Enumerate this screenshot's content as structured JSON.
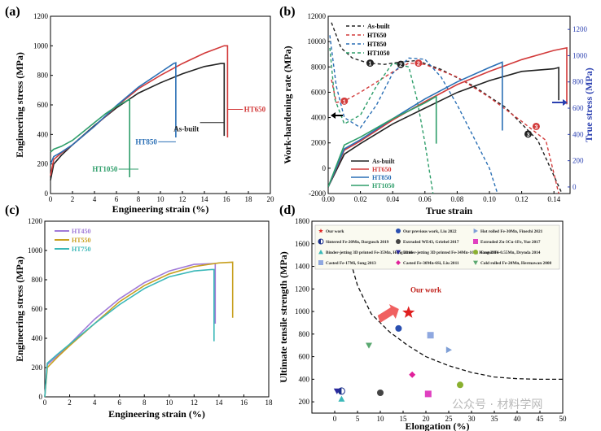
{
  "watermark": "公众号 · 材料学网",
  "chart_data": [
    {
      "panel": "(a)",
      "type": "line",
      "xlabel": "Engineering strain (%)",
      "ylabel": "Engineering stress (MPa)",
      "xlim": [
        0,
        20
      ],
      "ylim": [
        0,
        1200
      ],
      "xticks": [
        0,
        2,
        4,
        6,
        8,
        10,
        12,
        14,
        16,
        18,
        20
      ],
      "yticks": [
        0,
        200,
        400,
        600,
        800,
        1000,
        1200
      ],
      "series": [
        {
          "name": "As-built",
          "color": "#222222",
          "x": [
            0,
            0.3,
            1,
            2,
            4,
            6,
            8,
            10,
            12,
            14,
            15.5,
            15.8,
            15.8
          ],
          "y": [
            90,
            200,
            260,
            330,
            460,
            580,
            680,
            750,
            810,
            860,
            880,
            880,
            390
          ]
        },
        {
          "name": "HT650",
          "color": "#d23a3a",
          "x": [
            0,
            0.3,
            1,
            2,
            4,
            6,
            8,
            10,
            12,
            14,
            15.8,
            16.1,
            16.1
          ],
          "y": [
            120,
            230,
            275,
            330,
            455,
            590,
            710,
            800,
            880,
            950,
            1000,
            1000,
            380
          ]
        },
        {
          "name": "HT850",
          "color": "#2a6fb5",
          "x": [
            0,
            0.3,
            1,
            2,
            4,
            6,
            8,
            10,
            11.2,
            11.4,
            11.4
          ],
          "y": [
            200,
            250,
            280,
            330,
            455,
            595,
            720,
            820,
            880,
            885,
            380
          ]
        },
        {
          "name": "HT1050",
          "color": "#2e9e6a",
          "x": [
            0,
            0.3,
            1,
            2,
            3,
            4,
            5,
            6,
            7,
            7.2,
            7.2
          ],
          "y": [
            280,
            300,
            320,
            360,
            420,
            480,
            540,
            590,
            630,
            635,
            110
          ]
        }
      ],
      "annotations": [
        "As-built",
        "HT650",
        "HT850",
        "HT1050"
      ]
    },
    {
      "panel": "(b)",
      "type": "line",
      "xlabel": "True strain",
      "ylabel": "Work-hardening rate (MPa)",
      "y2label": "True stress (MPa)",
      "xlim": [
        0,
        0.15
      ],
      "ylim": [
        -2000,
        12000
      ],
      "y2lim": [
        -50,
        1300
      ],
      "xticks": [
        0.0,
        0.02,
        0.04,
        0.06,
        0.08,
        0.1,
        0.12,
        0.14
      ],
      "yticks": [
        -2000,
        0,
        2000,
        4000,
        6000,
        8000,
        10000,
        12000
      ],
      "y2ticks": [
        0,
        200,
        400,
        600,
        800,
        1000,
        1200
      ],
      "dashed_legend": [
        "As-built",
        "HT650",
        "HT850",
        "HT1050"
      ],
      "solid_legend": [
        "As-built",
        "HT650",
        "HT850",
        "HT1050"
      ],
      "markers": [
        "1",
        "2",
        "3"
      ],
      "whr_series": [
        {
          "name": "As-built",
          "color": "#222222",
          "x": [
            0.002,
            0.008,
            0.015,
            0.025,
            0.035,
            0.045,
            0.055,
            0.07,
            0.09,
            0.11,
            0.13,
            0.145
          ],
          "y": [
            11500,
            9500,
            8700,
            8300,
            8200,
            8400,
            8500,
            7800,
            6500,
            4800,
            2200,
            -2000
          ]
        },
        {
          "name": "HT650",
          "color": "#d23a3a",
          "x": [
            0.002,
            0.005,
            0.01,
            0.02,
            0.03,
            0.04,
            0.05,
            0.06,
            0.08,
            0.1,
            0.12,
            0.135,
            0.143
          ],
          "y": [
            7000,
            5200,
            5300,
            6000,
            6800,
            7600,
            8300,
            8200,
            7200,
            5600,
            3700,
            2200,
            -2000
          ]
        },
        {
          "name": "HT850",
          "color": "#2a6fb5",
          "x": [
            0.001,
            0.005,
            0.01,
            0.02,
            0.03,
            0.04,
            0.05,
            0.06,
            0.07,
            0.08,
            0.09,
            0.1,
            0.105
          ],
          "y": [
            10500,
            6500,
            4000,
            3200,
            5000,
            7500,
            8700,
            8600,
            7200,
            5000,
            2500,
            0,
            -2000
          ]
        },
        {
          "name": "HT1050",
          "color": "#2e9e6a",
          "x": [
            0.001,
            0.004,
            0.01,
            0.02,
            0.03,
            0.04,
            0.05,
            0.055,
            0.06,
            0.065
          ],
          "y": [
            9500,
            5500,
            3500,
            4200,
            6500,
            8300,
            8000,
            5500,
            2000,
            -2000
          ]
        }
      ],
      "stress_series": [
        {
          "name": "As-built",
          "color": "#222222",
          "x": [
            0,
            0.01,
            0.02,
            0.04,
            0.06,
            0.08,
            0.1,
            0.12,
            0.14,
            0.143,
            0.143
          ],
          "y": [
            0,
            250,
            330,
            480,
            600,
            720,
            810,
            880,
            900,
            910,
            660
          ]
        },
        {
          "name": "HT650",
          "color": "#d23a3a",
          "x": [
            0,
            0.01,
            0.02,
            0.04,
            0.06,
            0.08,
            0.1,
            0.12,
            0.14,
            0.148,
            0.148
          ],
          "y": [
            0,
            280,
            350,
            510,
            650,
            780,
            880,
            970,
            1040,
            1060,
            630
          ]
        },
        {
          "name": "HT850",
          "color": "#2a6fb5",
          "x": [
            0,
            0.01,
            0.02,
            0.04,
            0.06,
            0.08,
            0.1,
            0.108,
            0.108
          ],
          "y": [
            0,
            290,
            360,
            520,
            670,
            800,
            910,
            950,
            430
          ]
        },
        {
          "name": "HT1050",
          "color": "#2e9e6a",
          "x": [
            0,
            0.01,
            0.02,
            0.04,
            0.06,
            0.067,
            0.067
          ],
          "y": [
            0,
            320,
            380,
            520,
            640,
            690,
            330
          ]
        }
      ]
    },
    {
      "panel": "(c)",
      "type": "line",
      "xlabel": "Engineering strain (%)",
      "ylabel": "Engineering stress (MPa)",
      "xlim": [
        0,
        18
      ],
      "ylim": [
        0,
        1200
      ],
      "xticks": [
        0,
        2,
        4,
        6,
        8,
        10,
        12,
        14,
        16,
        18
      ],
      "yticks": [
        0,
        200,
        400,
        600,
        800,
        1000,
        1200
      ],
      "series": [
        {
          "name": "HT450",
          "color": "#a07ad8",
          "x": [
            0,
            0.2,
            1,
            2,
            4,
            6,
            8,
            10,
            12,
            13.5,
            13.7,
            13.7
          ],
          "y": [
            0,
            220,
            280,
            360,
            530,
            670,
            780,
            860,
            905,
            910,
            910,
            500
          ]
        },
        {
          "name": "HT550",
          "color": "#c8a020",
          "x": [
            0,
            0.2,
            1,
            2,
            4,
            6,
            8,
            10,
            12,
            14,
            15.1,
            15.1
          ],
          "y": [
            0,
            200,
            270,
            350,
            500,
            650,
            760,
            840,
            890,
            915,
            920,
            540
          ]
        },
        {
          "name": "HT750",
          "color": "#3ab8b8",
          "x": [
            0,
            0.2,
            1,
            2,
            4,
            6,
            8,
            10,
            12,
            13.4,
            13.6,
            13.6
          ],
          "y": [
            0,
            230,
            290,
            360,
            500,
            630,
            740,
            820,
            860,
            870,
            870,
            380
          ]
        }
      ]
    },
    {
      "panel": "(d)",
      "type": "scatter",
      "xlabel": "Elongation (%)",
      "ylabel": "Ultimate tensile strength (MPa)",
      "xlim": [
        -5,
        50
      ],
      "ylim": [
        100,
        1800
      ],
      "xticks": [
        0,
        5,
        10,
        15,
        20,
        25,
        30,
        35,
        40,
        45,
        50
      ],
      "yticks": [
        200,
        400,
        600,
        800,
        1000,
        1200,
        1400,
        1600,
        1800
      ],
      "annotation": "Our work",
      "legend": [
        {
          "label": "Our work",
          "shape": "star",
          "color": "#e02020"
        },
        {
          "label": "Our previous work, Liu 2022",
          "shape": "circle",
          "color": "#2a4fb0"
        },
        {
          "label": "Hot rolled Fe-30Mn, Finechi 2021",
          "shape": "triangle-right",
          "color": "#7f9fd6"
        },
        {
          "label": "Sintered Fe-20Mn, Dargusch 2019",
          "shape": "half-circle",
          "color": "#1a2f8a"
        },
        {
          "label": "Extruded WE43, Griebel 2017",
          "shape": "circle",
          "color": "#444444"
        },
        {
          "label": "Extruded Zn-3Cu-1Fe, Yue 2017",
          "shape": "square",
          "color": "#e040c0"
        },
        {
          "label": "Binder-jetting 3D printed Fe-35Mn, Hong 2016",
          "shape": "triangle-up",
          "color": "#3ab8b8"
        },
        {
          "label": "Binder-jetting 3D printed Fe-34Mn-1Ca, Hong 2016",
          "shape": "triangle-down",
          "color": "#2a2a9e"
        },
        {
          "label": "Casted Fe-0.55Mn, Drynda 2014",
          "shape": "circle",
          "color": "#8ab030"
        },
        {
          "label": "Casted Fe-17Mi, Song 2013",
          "shape": "square",
          "color": "#8fa8e0"
        },
        {
          "label": "Casted Fe-30Mn-6Si, Liu 2011",
          "shape": "diamond",
          "color": "#e0209a"
        },
        {
          "label": "Cold rolled Fe-20Mn, Hermawan 2008",
          "shape": "triangle-down",
          "color": "#5aa870"
        }
      ],
      "points": [
        {
          "series": "Our work",
          "x": 16.2,
          "y": 990
        },
        {
          "series": "Our previous work, Liu 2022",
          "x": 14,
          "y": 850
        },
        {
          "series": "Hot rolled Fe-30Mn, Finechi 2021",
          "x": 25,
          "y": 660
        },
        {
          "series": "Sintered Fe-20Mn, Dargusch 2019",
          "x": 1.5,
          "y": 295
        },
        {
          "series": "Extruded WE43, Griebel 2017",
          "x": 10,
          "y": 280
        },
        {
          "series": "Extruded Zn-3Cu-1Fe, Yue 2017",
          "x": 20.5,
          "y": 270
        },
        {
          "series": "Binder-jetting 3D printed Fe-35Mn, Hong 2016",
          "x": 1.5,
          "y": 225
        },
        {
          "series": "Binder-jetting 3D printed Fe-34Mn-1Ca, Hong 2016",
          "x": 0.5,
          "y": 295
        },
        {
          "series": "Casted Fe-0.55Mn, Drynda 2014",
          "x": 27.5,
          "y": 350
        },
        {
          "series": "Casted Fe-17Mi, Song 2013",
          "x": 21,
          "y": 790
        },
        {
          "series": "Casted Fe-30Mn-6Si, Liu 2011",
          "x": 17,
          "y": 440
        },
        {
          "series": "Cold rolled Fe-20Mn, Hermawan 2008",
          "x": 7.5,
          "y": 700
        }
      ],
      "boundary": {
        "x": [
          2,
          5,
          8,
          12,
          16,
          20,
          25,
          30,
          35,
          40,
          45,
          50
        ],
        "y": [
          1650,
          1230,
          980,
          820,
          700,
          600,
          520,
          460,
          420,
          405,
          400,
          400
        ]
      }
    }
  ]
}
